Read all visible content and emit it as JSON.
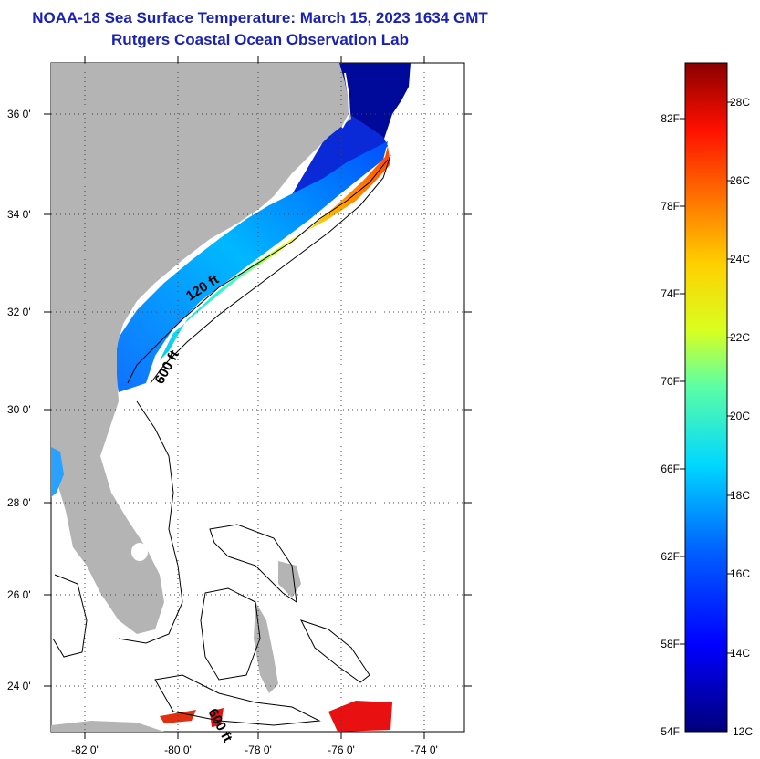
{
  "header": {
    "title": "NOAA-18 Sea Surface Temperature:  March 15, 2023 1634 GMT",
    "subtitle": "Rutgers Coastal Ocean Observation Lab"
  },
  "map": {
    "lat_ticks": [
      "36 0'",
      "34 0'",
      "32 0'",
      "30 0'",
      "28 0'",
      "26 0'",
      "24 0'"
    ],
    "lon_ticks": [
      "-82 0'",
      "-80 0'",
      "-78 0'",
      "-76 0'",
      "-74 0'"
    ],
    "contours": [
      {
        "label": "120 ft"
      },
      {
        "label": "600 ft"
      },
      {
        "label": "600 ft"
      }
    ],
    "colors": {
      "land": "#b4b4b4",
      "ocean_no_data": "#ffffff",
      "grid": "#444444"
    }
  },
  "colorbar": {
    "fahrenheit_labels": [
      "82F",
      "78F",
      "74F",
      "70F",
      "66F",
      "62F",
      "58F",
      "54F"
    ],
    "celsius_labels": [
      "28C",
      "26C",
      "24C",
      "22C",
      "20C",
      "18C",
      "16C",
      "14C",
      "12C"
    ],
    "colors": [
      "#000080",
      "#0000ff",
      "#00a0ff",
      "#00ffff",
      "#80ff80",
      "#ffff00",
      "#ff8000",
      "#ff0000",
      "#800000"
    ]
  }
}
